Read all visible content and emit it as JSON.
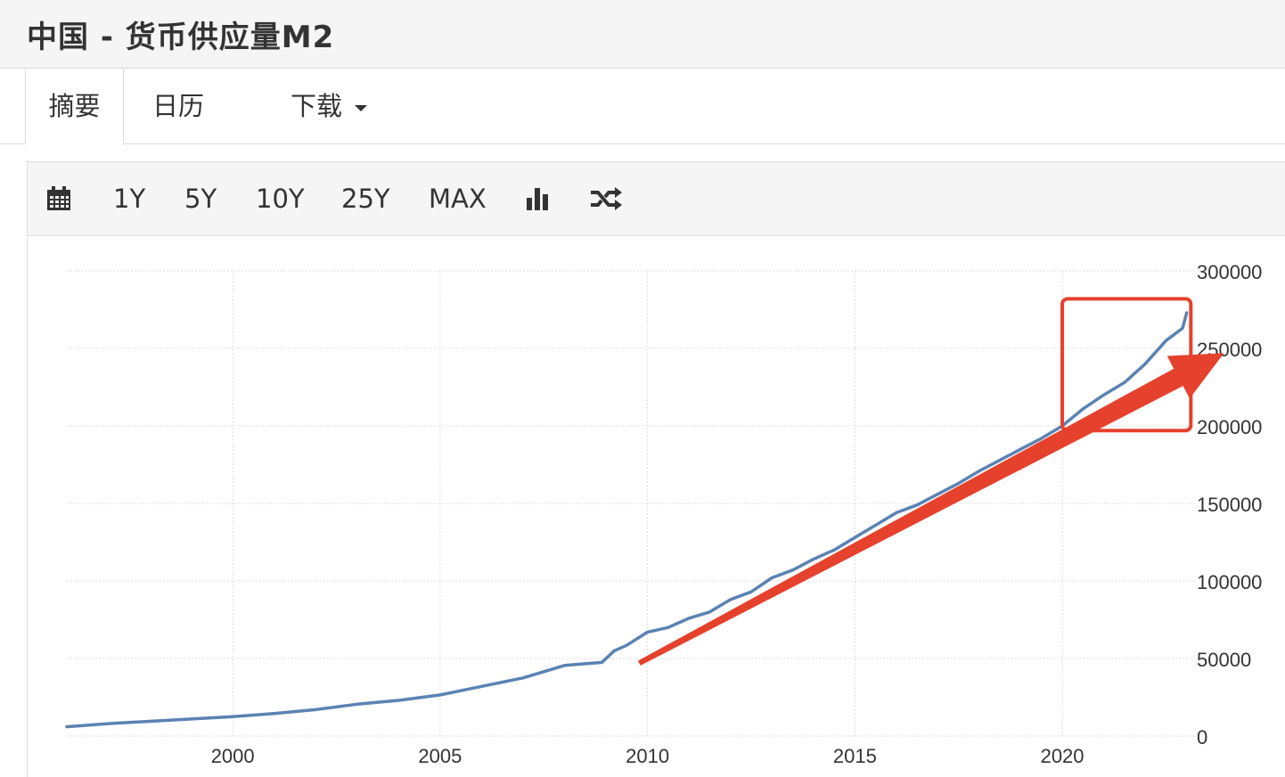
{
  "header": {
    "title": "中国 - 货币供应量M2"
  },
  "tabs": [
    {
      "label": "摘要",
      "active": true
    },
    {
      "label": "日历",
      "active": false
    },
    {
      "label": "下载",
      "active": false,
      "dropdown": true
    }
  ],
  "toolbar": {
    "calendar_icon": "calendar-icon",
    "ranges": [
      "1Y",
      "5Y",
      "10Y",
      "25Y",
      "MAX"
    ],
    "bar_chart_icon": "bar-chart-icon",
    "compare_icon": "shuffle-icon"
  },
  "colors": {
    "series": "#5b82b3",
    "annotation": "#e5412d",
    "grid": "#dddddd"
  },
  "chart_data": {
    "type": "line",
    "title": "",
    "xlabel": "",
    "ylabel": "",
    "xlim": [
      1996,
      2023.2
    ],
    "ylim": [
      0,
      300000
    ],
    "x_ticks": [
      "2000",
      "2005",
      "2010",
      "2015",
      "2020"
    ],
    "y_ticks": [
      "0",
      "50000",
      "100000",
      "150000",
      "200000",
      "250000",
      "300000"
    ],
    "grid": true,
    "legend": "none",
    "series": [
      {
        "name": "",
        "x": [
          1996.0,
          1997.0,
          1998.0,
          1999.0,
          2000.0,
          2001.0,
          2002.0,
          2003.0,
          2004.0,
          2005.0,
          2006.0,
          2007.0,
          2008.0,
          2008.9,
          2009.2,
          2009.5,
          2010.0,
          2010.5,
          2011.0,
          2011.5,
          2012.0,
          2012.5,
          2013.0,
          2013.5,
          2014.0,
          2014.5,
          2015.0,
          2015.5,
          2016.0,
          2016.5,
          2017.0,
          2017.5,
          2018.0,
          2018.5,
          2019.0,
          2019.5,
          2020.0,
          2020.5,
          2021.0,
          2021.5,
          2022.0,
          2022.5,
          2022.9,
          2023.0
        ],
        "values": [
          6000,
          8000,
          9500,
          11000,
          12500,
          14500,
          17000,
          20500,
          23000,
          26500,
          32000,
          37500,
          45500,
          47500,
          55000,
          58500,
          67000,
          70000,
          76000,
          80000,
          88000,
          93000,
          102000,
          107000,
          114000,
          120000,
          128000,
          136000,
          144000,
          149000,
          156000,
          163000,
          171000,
          178000,
          185000,
          192000,
          200000,
          211000,
          220000,
          228000,
          240000,
          255000,
          263000,
          273000
        ]
      }
    ],
    "annotations": [
      {
        "type": "arrow",
        "from": [
          2009.8,
          47000
        ],
        "to": [
          2023.9,
          247000
        ]
      },
      {
        "type": "box",
        "x_range": [
          2020.0,
          2023.1
        ],
        "y_range": [
          197000,
          282000
        ]
      }
    ]
  }
}
